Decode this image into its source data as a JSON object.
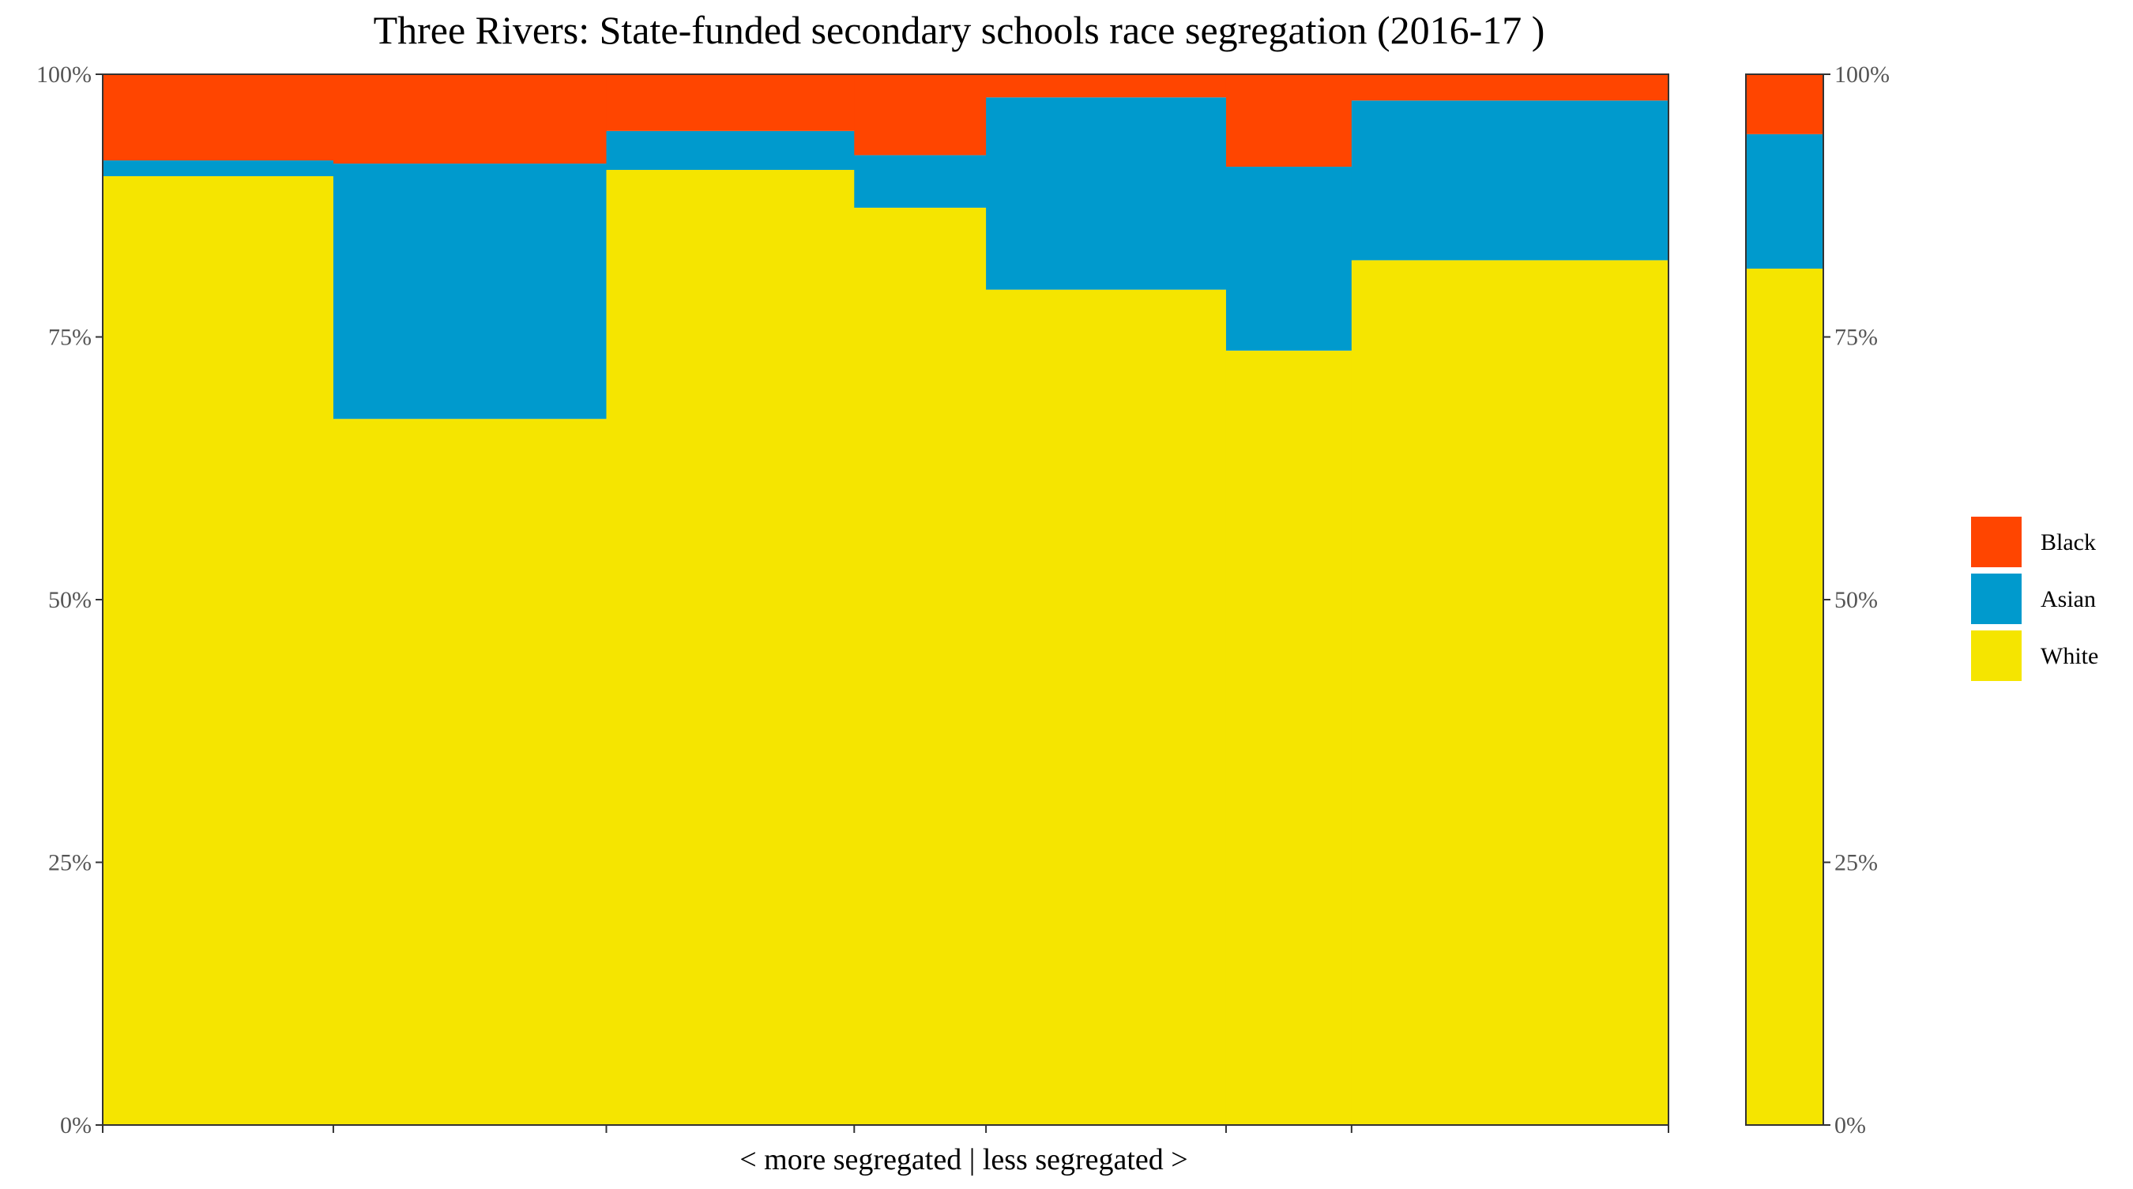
{
  "chart_data": {
    "type": "bar",
    "title": "Three Rivers: State-funded secondary schools race segregation (2016-17 )",
    "xlabel": "< more segregated | less segregated >",
    "ylabel": "",
    "ylim": [
      0,
      1
    ],
    "y_ticks": [
      "0%",
      "25%",
      "50%",
      "75%",
      "100%"
    ],
    "stack_order": [
      "White",
      "Asian",
      "Black"
    ],
    "legend": {
      "position": "right",
      "entries": [
        {
          "name": "Black",
          "color": "#FF4500"
        },
        {
          "name": "Asian",
          "color": "#009ACD"
        },
        {
          "name": "White",
          "color": "#F5E500"
        }
      ]
    },
    "schools": [
      {
        "width": 0.147,
        "White": 0.903,
        "Asian": 0.015,
        "Black": 0.082
      },
      {
        "width": 0.174,
        "White": 0.672,
        "Asian": 0.243,
        "Black": 0.085
      },
      {
        "width": 0.158,
        "White": 0.909,
        "Asian": 0.037,
        "Black": 0.054
      },
      {
        "width": 0.084,
        "White": 0.873,
        "Asian": 0.05,
        "Black": 0.077
      },
      {
        "width": 0.153,
        "White": 0.795,
        "Asian": 0.183,
        "Black": 0.022
      },
      {
        "width": 0.08,
        "White": 0.737,
        "Asian": 0.175,
        "Black": 0.088
      },
      {
        "width": 0.202,
        "White": 0.823,
        "Asian": 0.152,
        "Black": 0.025
      }
    ],
    "overall": {
      "White": 0.815,
      "Asian": 0.128,
      "Black": 0.057
    },
    "grid": false
  }
}
